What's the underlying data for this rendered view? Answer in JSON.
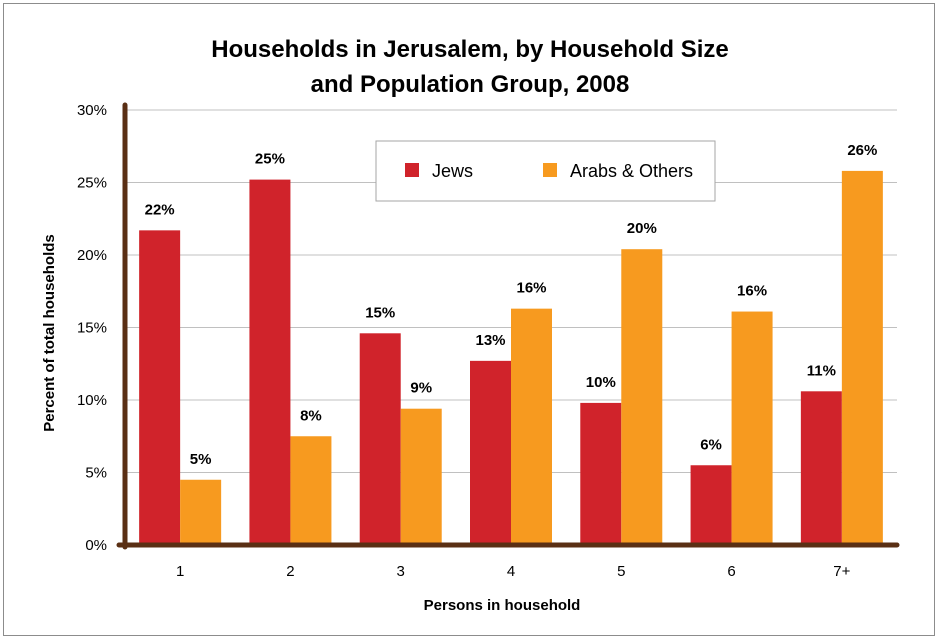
{
  "chart_data": {
    "type": "bar",
    "title": [
      "Households in Jerusalem, by Household Size",
      "and Population Group, 2008"
    ],
    "xlabel": "Persons in household",
    "ylabel": "Percent of total households",
    "categories": [
      "1",
      "2",
      "3",
      "4",
      "5",
      "6",
      "7+"
    ],
    "ylim": [
      0,
      30
    ],
    "yticks": [
      0,
      5,
      10,
      15,
      20,
      25,
      30
    ],
    "ytick_labels": [
      "0%",
      "5%",
      "10%",
      "15%",
      "20%",
      "25%",
      "30%"
    ],
    "grid": true,
    "legend_position": "top-center",
    "series": [
      {
        "name": "Jews",
        "color": "#d0232b",
        "values": [
          21.7,
          25.2,
          14.6,
          12.7,
          9.8,
          5.5,
          10.6
        ],
        "labels": [
          "22%",
          "25%",
          "15%",
          "13%",
          "10%",
          "6%",
          "11%"
        ]
      },
      {
        "name": "Arabs & Others",
        "color": "#f79a1f",
        "values": [
          4.5,
          7.5,
          9.4,
          16.3,
          20.4,
          16.1,
          25.8
        ],
        "labels": [
          "5%",
          "8%",
          "9%",
          "16%",
          "20%",
          "16%",
          "26%"
        ]
      }
    ],
    "colors": {
      "axis": "#5a2f14",
      "grid": "#c0c0c0"
    }
  }
}
